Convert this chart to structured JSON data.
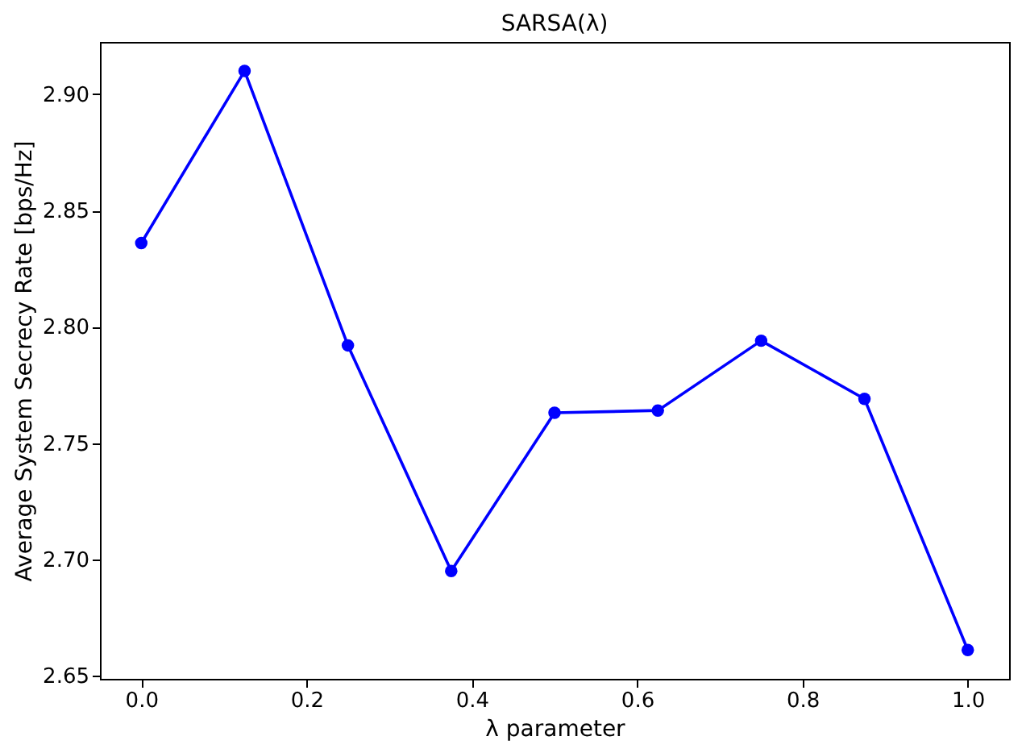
{
  "chart_data": {
    "type": "line",
    "title": "SARSA(λ)",
    "xlabel": "λ parameter",
    "ylabel": "Average System Secrecy Rate [bps/Hz]",
    "x": [
      0,
      0.125,
      0.25,
      0.375,
      0.5,
      0.625,
      0.75,
      0.875,
      1.0
    ],
    "series": [
      {
        "color": "#0000ff",
        "values": [
          2.836,
          2.91,
          2.792,
          2.695,
          2.763,
          2.764,
          2.794,
          2.769,
          2.661
        ]
      }
    ],
    "xlim": [
      -0.05,
      1.05
    ],
    "xticks": [
      {
        "value": 0,
        "label": "0.0"
      },
      {
        "value": 0.2,
        "label": "0.2"
      },
      {
        "value": 0.4,
        "label": "0.4"
      },
      {
        "value": 0.6,
        "label": "0.6"
      },
      {
        "value": 0.8,
        "label": "0.8"
      },
      {
        "value": 1.0,
        "label": "1.0"
      }
    ],
    "ylim": [
      2.6486,
      2.9225
    ],
    "yticks": [
      {
        "value": 2.65,
        "label": "2.65"
      },
      {
        "value": 2.7,
        "label": "2.70"
      },
      {
        "value": 2.75,
        "label": "2.75"
      },
      {
        "value": 2.8,
        "label": "2.80"
      },
      {
        "value": 2.85,
        "label": "2.85"
      },
      {
        "value": 2.9,
        "label": "2.90"
      }
    ],
    "marker": "circle",
    "line_style": "solid",
    "grid": false
  }
}
